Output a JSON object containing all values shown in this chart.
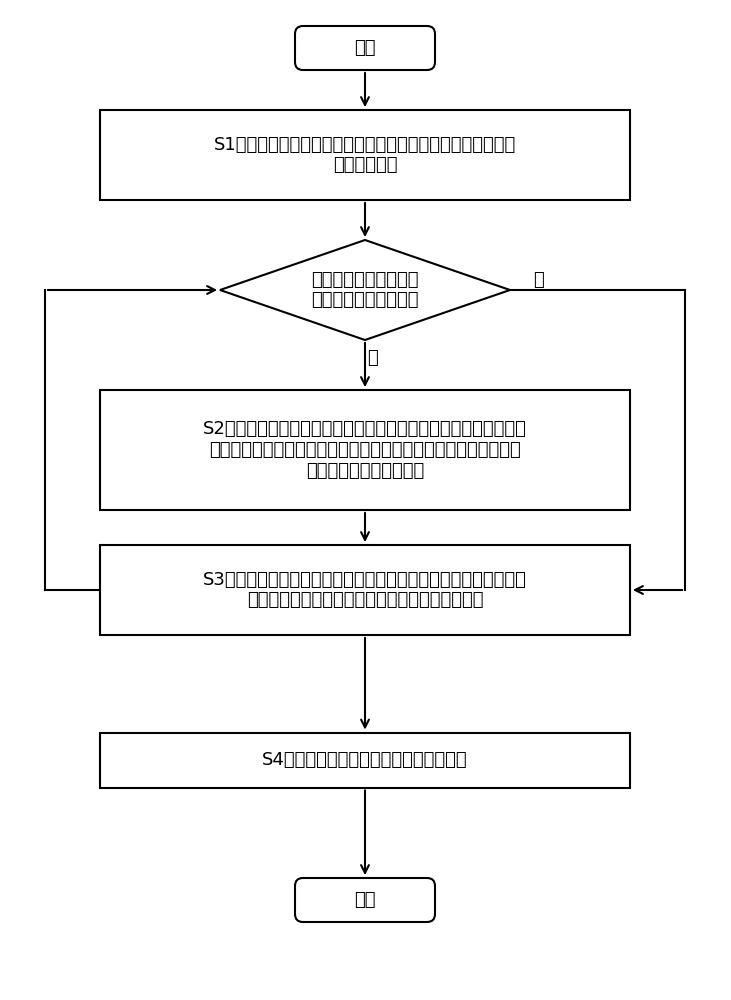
{
  "bg_color": "#ffffff",
  "box_color": "#ffffff",
  "box_edge_color": "#000000",
  "arrow_color": "#000000",
  "text_color": "#000000",
  "start_text": "开始",
  "end_text": "结束",
  "s1_line1": "S1：控制器接收到放电信号，进入电流控制模式，对直流母线",
  "s1_line2": "电压进行检测",
  "diamond_line1": "判断直流母线电压是否",
  "diamond_line2": "小于控制器的安全阈値",
  "yes_label": "是",
  "no_label": "否",
  "s2_line1": "S2：通过定时器生成三角波时域信号値，获取放电时间参数和励磁",
  "s2_line2": "电流调制幅値，将三角波时域信号値、放电参数和励磁电流调制幅",
  "s2_line3": "値相乘得到励磁有效电流",
  "s3_line1": "S3：根据励磁有效电流，生成相应的励磁电流指令输入到控制器，",
  "s3_line2": "控制器根据励磁电流指令对高压直流电容进行放电",
  "s4_text": "S4：控制器退出电流控制模式，放电完成",
  "fig_width": 7.31,
  "fig_height": 10.0,
  "dpi": 100
}
